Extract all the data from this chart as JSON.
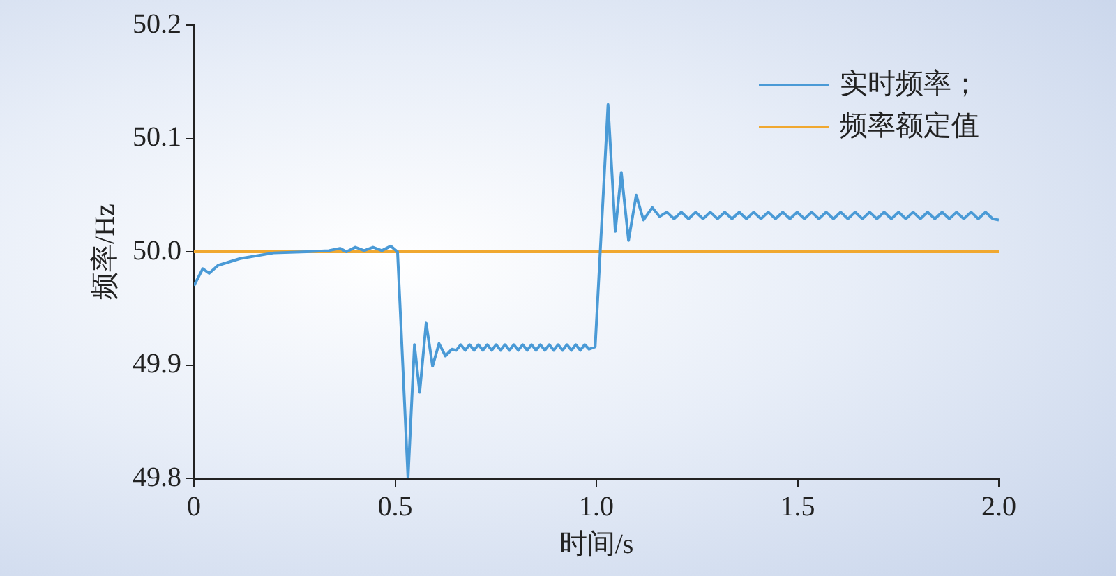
{
  "chart_data": {
    "type": "line",
    "xlabel": "时间/s",
    "ylabel": "频率/Hz",
    "xlim": [
      0,
      2
    ],
    "xticks": [
      0,
      {
        "value": 0.5,
        "label": "0.5"
      },
      {
        "value": 1,
        "label": "1.0"
      },
      {
        "value": 1.5,
        "label": "1.5"
      },
      {
        "value": 2,
        "label": "2.0"
      }
    ],
    "ylim": [
      49.8,
      50.2
    ],
    "yticks": [
      {
        "value": 49.8,
        "label": "49.8"
      },
      {
        "value": 49.9,
        "label": "49.9"
      },
      {
        "value": 50,
        "label": "50.0"
      },
      {
        "value": 50.1,
        "label": "50.1"
      },
      {
        "value": 50.2,
        "label": "50.2"
      }
    ],
    "grid": false,
    "legend": "top right",
    "marker": "none",
    "line_style": "solid",
    "series": [
      {
        "name": "实时频率；",
        "color": "#4a9ad6",
        "x": [
          0,
          0.022,
          0.038,
          0.06,
          0.115,
          0.198,
          0.28,
          0.335,
          0.363,
          0.379,
          0.401,
          0.423,
          0.445,
          0.467,
          0.489,
          0.506,
          0.532,
          0.548,
          0.561,
          0.577,
          0.593,
          0.609,
          0.625,
          0.641,
          0.652,
          0.663,
          0.674,
          0.685,
          0.696,
          0.707,
          0.718,
          0.729,
          0.74,
          0.751,
          0.762,
          0.773,
          0.784,
          0.795,
          0.806,
          0.817,
          0.828,
          0.839,
          0.85,
          0.861,
          0.872,
          0.883,
          0.894,
          0.905,
          0.916,
          0.927,
          0.938,
          0.949,
          0.96,
          0.971,
          0.982,
          0.997,
          1.029,
          1.047,
          1.062,
          1.08,
          1.099,
          1.117,
          1.139,
          1.157,
          1.175,
          1.193,
          1.211,
          1.229,
          1.247,
          1.265,
          1.283,
          1.301,
          1.319,
          1.337,
          1.355,
          1.373,
          1.391,
          1.409,
          1.427,
          1.445,
          1.463,
          1.481,
          1.499,
          1.517,
          1.535,
          1.553,
          1.571,
          1.589,
          1.607,
          1.625,
          1.643,
          1.661,
          1.679,
          1.697,
          1.715,
          1.733,
          1.751,
          1.769,
          1.787,
          1.805,
          1.823,
          1.841,
          1.859,
          1.877,
          1.895,
          1.913,
          1.931,
          1.949,
          1.967,
          1.985,
          2
        ],
        "values": [
          49.97,
          49.985,
          49.981,
          49.988,
          49.994,
          49.999,
          50,
          50.001,
          50.003,
          50,
          50.004,
          50.001,
          50.004,
          50.001,
          50.005,
          50,
          49.8,
          49.918,
          49.876,
          49.937,
          49.899,
          49.919,
          49.908,
          49.914,
          49.913,
          49.918,
          49.913,
          49.918,
          49.913,
          49.918,
          49.913,
          49.918,
          49.913,
          49.918,
          49.913,
          49.918,
          49.913,
          49.918,
          49.913,
          49.918,
          49.913,
          49.918,
          49.913,
          49.918,
          49.913,
          49.918,
          49.913,
          49.918,
          49.913,
          49.918,
          49.913,
          49.918,
          49.913,
          49.918,
          49.914,
          49.916,
          50.13,
          50.018,
          50.07,
          50.01,
          50.05,
          50.028,
          50.039,
          50.031,
          50.035,
          50.029,
          50.035,
          50.029,
          50.035,
          50.029,
          50.035,
          50.029,
          50.035,
          50.029,
          50.035,
          50.029,
          50.035,
          50.029,
          50.035,
          50.029,
          50.035,
          50.029,
          50.035,
          50.029,
          50.035,
          50.029,
          50.035,
          50.029,
          50.035,
          50.029,
          50.035,
          50.029,
          50.035,
          50.029,
          50.035,
          50.029,
          50.035,
          50.029,
          50.035,
          50.029,
          50.035,
          50.029,
          50.035,
          50.029,
          50.035,
          50.029,
          50.035,
          50.029,
          50.035,
          50.029,
          50.028
        ]
      },
      {
        "name": "频率额定值",
        "color": "#f0a830",
        "x": [
          0,
          2
        ],
        "values": [
          50,
          50
        ]
      }
    ]
  }
}
